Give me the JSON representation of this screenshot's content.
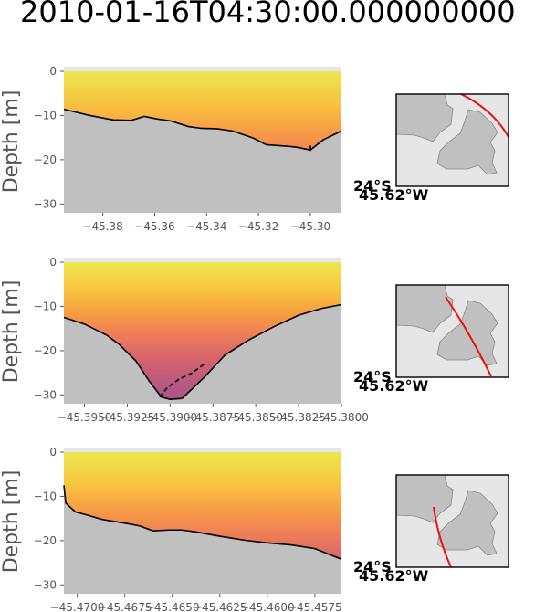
{
  "title": "2010-01-16T04:30:00.000000000",
  "chart_data": [
    {
      "type": "area",
      "ylabel": "Depth [m]",
      "ylim": [
        -32,
        0
      ],
      "yticks": [
        0,
        -10,
        -20,
        -30
      ],
      "xlim": [
        -45.395,
        -45.288
      ],
      "xticks": [
        -45.38,
        -45.36,
        -45.34,
        -45.32,
        -45.3
      ],
      "xtick_labels": [
        "−45.38",
        "−45.36",
        "−45.34",
        "−45.32",
        "−45.30"
      ],
      "ytick_labels": [
        "0",
        "−10",
        "−20",
        "−30"
      ],
      "bathymetry": {
        "x": [
          -45.395,
          -45.385,
          -45.376,
          -45.369,
          -45.364,
          -45.359,
          -45.354,
          -45.347,
          -45.342,
          -45.336,
          -45.33,
          -45.322,
          -45.317,
          -45.308,
          -45.305,
          -45.3,
          -45.295,
          -45.288
        ],
        "y": [
          -8.6,
          -10,
          -11,
          -11.1,
          -10.2,
          -10.8,
          -11.2,
          -12.5,
          -12.9,
          -13,
          -13.5,
          -15.1,
          -16.6,
          -17,
          -17.2,
          -17.8,
          -15.5,
          -13.5
        ]
      },
      "annotation_line": {
        "x": [
          -45.3,
          -45.3
        ],
        "y": [
          -16.8,
          -18.0
        ]
      },
      "map_label_lat": "24°S",
      "map_label_lon": "45.62°W"
    },
    {
      "type": "area",
      "ylabel": "Depth [m]",
      "ylim": [
        -32,
        0
      ],
      "yticks": [
        0,
        -10,
        -20,
        -30
      ],
      "xlim": [
        -45.3962,
        -45.38
      ],
      "xticks": [
        -45.395,
        -45.3925,
        -45.39,
        -45.3875,
        -45.385,
        -45.3825,
        -45.38
      ],
      "xtick_labels": [
        "−45.3950",
        "−45.3925",
        "−45.3900",
        "−45.3875",
        "−45.3850",
        "−45.3825",
        "−45.3800"
      ],
      "ytick_labels": [
        "0",
        "−10",
        "−20",
        "−30"
      ],
      "bathymetry": {
        "x": [
          -45.3962,
          -45.395,
          -45.3937,
          -45.393,
          -45.392,
          -45.3912,
          -45.3905,
          -45.39,
          -45.3893,
          -45.388,
          -45.3868,
          -45.3855,
          -45.384,
          -45.3825,
          -45.3812,
          -45.38
        ],
        "y": [
          -12.5,
          -14,
          -16.5,
          -18.5,
          -22.3,
          -27,
          -30.5,
          -31,
          -30.8,
          -26,
          -21,
          -17.8,
          -14.7,
          -12,
          -10.5,
          -9.6
        ]
      },
      "annotation_line": {
        "x": [
          -45.3906,
          -45.3902,
          -45.3895,
          -45.3887,
          -45.388
        ],
        "y": [
          -30.5,
          -28.5,
          -26.5,
          -25,
          -23
        ]
      },
      "map_label_lat": "24°S",
      "map_label_lon": "45.62°W"
    },
    {
      "type": "area",
      "ylabel": "Depth [m]",
      "ylim": [
        -32,
        0
      ],
      "yticks": [
        0,
        -10,
        -20,
        -30
      ],
      "xlim": [
        -45.4707,
        -45.4561
      ],
      "xticks": [
        -45.47,
        -45.4675,
        -45.465,
        -45.4625,
        -45.46,
        -45.4575
      ],
      "xtick_labels": [
        "−45.4700",
        "−45.4675",
        "−45.4650",
        "−45.4625",
        "−45.4600",
        "−45.4575"
      ],
      "ytick_labels": [
        "0",
        "−10",
        "−20",
        "−30"
      ],
      "bathymetry": {
        "x": [
          -45.4707,
          -45.4706,
          -45.4701,
          -45.4695,
          -45.4687,
          -45.468,
          -45.4673,
          -45.4667,
          -45.466,
          -45.4652,
          -45.4645,
          -45.4638,
          -45.4625,
          -45.4612,
          -45.46,
          -45.4587,
          -45.4575,
          -45.4561
        ],
        "y": [
          -7.5,
          -11.5,
          -13.5,
          -14.2,
          -15.2,
          -15.7,
          -16.2,
          -16.7,
          -17.8,
          -17.6,
          -17.6,
          -18,
          -19,
          -19.9,
          -20.5,
          -21,
          -21.8,
          -24.2
        ]
      },
      "annotation_line": {
        "x": [],
        "y": []
      },
      "map_label_lat": "24°S",
      "map_label_lon": "45.62°W"
    }
  ]
}
